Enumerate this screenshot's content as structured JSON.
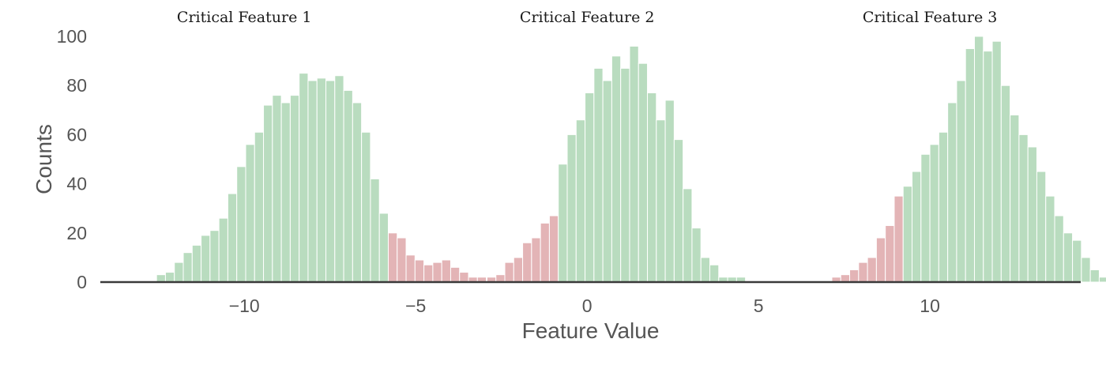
{
  "chart_data": {
    "type": "bar",
    "xlabel": "Feature Value",
    "ylabel": "Counts",
    "xlim": [
      -14.2,
      14.4
    ],
    "ylim": [
      0,
      100
    ],
    "xticks": [
      -10,
      -5,
      0,
      5,
      10
    ],
    "xtick_labels": [
      "−10",
      "−5",
      "0",
      "5",
      "10"
    ],
    "yticks": [
      0,
      20,
      40,
      60,
      80,
      100
    ],
    "ytick_labels": [
      "0",
      "20",
      "40",
      "60",
      "80",
      "100"
    ],
    "grid": false,
    "colors": {
      "green": "#b9dcbf",
      "red": "#e3b4b6",
      "baseline": "#3a3a3a"
    },
    "bin_width": 0.26,
    "annotations": [
      {
        "text": "Critical Feature 1",
        "x": -10.0,
        "y": 100
      },
      {
        "text": "Critical Feature 2",
        "x": 0.0,
        "y": 100
      },
      {
        "text": "Critical Feature 3",
        "x": 10.0,
        "y": 100
      }
    ],
    "series": [
      {
        "start": -12.56,
        "values": [
          3,
          4,
          8,
          12,
          15,
          19,
          21,
          26,
          36,
          47,
          56,
          61,
          72,
          76,
          73,
          76,
          85,
          82,
          83,
          82,
          84,
          78,
          73,
          61,
          42,
          28,
          20,
          18,
          11,
          9,
          7,
          8,
          9,
          6,
          4,
          2,
          2
        ],
        "colors": [
          "green",
          "green",
          "green",
          "green",
          "green",
          "green",
          "green",
          "green",
          "green",
          "green",
          "green",
          "green",
          "green",
          "green",
          "green",
          "green",
          "green",
          "green",
          "green",
          "green",
          "green",
          "green",
          "green",
          "green",
          "green",
          "green",
          "red",
          "red",
          "red",
          "red",
          "red",
          "red",
          "red",
          "red",
          "red",
          "red",
          "red"
        ]
      },
      {
        "start": -2.92,
        "values": [
          2,
          3,
          8,
          10,
          16,
          18,
          24,
          27,
          48,
          60,
          66,
          77,
          87,
          82,
          92,
          87,
          96,
          89,
          77,
          66,
          74,
          58,
          38,
          22,
          10,
          7,
          2,
          2,
          2
        ],
        "colors": [
          "red",
          "red",
          "red",
          "red",
          "red",
          "red",
          "red",
          "red",
          "green",
          "green",
          "green",
          "green",
          "green",
          "green",
          "green",
          "green",
          "green",
          "green",
          "green",
          "green",
          "green",
          "green",
          "green",
          "green",
          "green",
          "green",
          "green",
          "green",
          "green"
        ]
      },
      {
        "start": 7.14,
        "values": [
          2,
          3,
          5,
          8,
          10,
          18,
          23,
          35,
          39,
          45,
          52,
          56,
          61,
          73,
          82,
          95,
          100,
          94,
          98,
          80,
          68,
          60,
          55,
          45,
          35,
          27,
          20,
          17,
          10,
          5,
          2,
          2,
          1
        ],
        "colors": [
          "red",
          "red",
          "red",
          "red",
          "red",
          "red",
          "red",
          "red",
          "green",
          "green",
          "green",
          "green",
          "green",
          "green",
          "green",
          "green",
          "green",
          "green",
          "green",
          "green",
          "green",
          "green",
          "green",
          "green",
          "green",
          "green",
          "green",
          "green",
          "green",
          "green",
          "green",
          "green",
          "green"
        ]
      }
    ]
  }
}
